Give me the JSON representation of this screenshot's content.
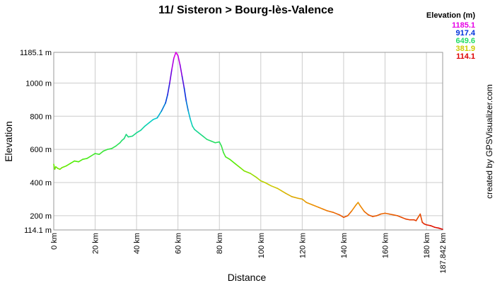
{
  "chart_data": {
    "type": "line",
    "title": "11/ Sisteron > Bourg-lès-Valence",
    "xlabel": "Distance",
    "ylabel": "Elevation",
    "xlim": [
      0,
      187.842
    ],
    "ylim": [
      114.1,
      1185.1
    ],
    "x_ticks": [
      0,
      20,
      40,
      60,
      80,
      100,
      120,
      140,
      160,
      180,
      187.842
    ],
    "x_tick_labels": [
      "0 km",
      "20 km",
      "40 km",
      "60 km",
      "80 km",
      "100 km",
      "120 km",
      "140 km",
      "160 km",
      "180 km",
      "187.842 km"
    ],
    "y_ticks": [
      114.1,
      200,
      400,
      600,
      800,
      1000,
      1185.1
    ],
    "y_tick_labels": [
      "114.1 m",
      "200 m",
      "400 m",
      "600 m",
      "800 m",
      "1000 m",
      "1185.1 m"
    ],
    "grid": true,
    "legend": {
      "title": "Elevation (m)",
      "placement": "top-right",
      "entries": [
        {
          "label": "1185.1",
          "color": "#e600e6"
        },
        {
          "label": "917.4",
          "color": "#0033dd"
        },
        {
          "label": "649.6",
          "color": "#22dd66"
        },
        {
          "label": "381.9",
          "color": "#cccc00"
        },
        {
          "label": "114.1",
          "color": "#dd0000"
        }
      ]
    },
    "annotations": [
      "created by GPSVisualizer.com"
    ],
    "colors": {
      "stops": [
        {
          "elev": 114.1,
          "color": "#dd0000"
        },
        {
          "elev": 247.9,
          "color": "#ee8800"
        },
        {
          "elev": 381.9,
          "color": "#cccc00"
        },
        {
          "elev": 515.7,
          "color": "#55ee00"
        },
        {
          "elev": 649.6,
          "color": "#22dd66"
        },
        {
          "elev": 783.5,
          "color": "#00cccc"
        },
        {
          "elev": 917.4,
          "color": "#0033dd"
        },
        {
          "elev": 1051.2,
          "color": "#7700dd"
        },
        {
          "elev": 1185.1,
          "color": "#e600e6"
        }
      ]
    },
    "series": [
      {
        "x": [
          0,
          0.5,
          1,
          2,
          3,
          4,
          5,
          6,
          8,
          10,
          12,
          14,
          16,
          18,
          20,
          22,
          24,
          26,
          28,
          30,
          32,
          33,
          34,
          35,
          36,
          38,
          40,
          42,
          44,
          46,
          48,
          50,
          52,
          54,
          55,
          56,
          57,
          58,
          59,
          60,
          61,
          62,
          63,
          64,
          65,
          66,
          67,
          68,
          70,
          72,
          74,
          76,
          78,
          80,
          81,
          82,
          83,
          85,
          88,
          90,
          92,
          95,
          98,
          100,
          102,
          105,
          108,
          110,
          112,
          115,
          118,
          120,
          122,
          125,
          128,
          130,
          132,
          135,
          138,
          140,
          142,
          144,
          146,
          147,
          148,
          150,
          152,
          154,
          156,
          158,
          160,
          162,
          164,
          166,
          168,
          170,
          172,
          174,
          175,
          176,
          177,
          178,
          179,
          180,
          182,
          184,
          186,
          187.842
        ],
        "y": [
          510,
          480,
          495,
          485,
          480,
          490,
          495,
          500,
          515,
          530,
          525,
          540,
          545,
          560,
          575,
          570,
          590,
          600,
          605,
          620,
          640,
          655,
          665,
          690,
          675,
          680,
          700,
          715,
          740,
          760,
          780,
          790,
          830,
          880,
          930,
          1000,
          1080,
          1150,
          1185,
          1165,
          1110,
          1040,
          970,
          890,
          830,
          780,
          740,
          720,
          700,
          680,
          660,
          650,
          640,
          645,
          620,
          580,
          555,
          540,
          510,
          490,
          470,
          455,
          430,
          410,
          400,
          380,
          365,
          350,
          335,
          315,
          305,
          300,
          280,
          265,
          250,
          240,
          230,
          220,
          205,
          190,
          200,
          230,
          265,
          280,
          260,
          225,
          205,
          195,
          200,
          210,
          215,
          210,
          205,
          200,
          190,
          180,
          175,
          175,
          170,
          190,
          210,
          160,
          150,
          145,
          140,
          130,
          125,
          118
        ]
      }
    ]
  }
}
